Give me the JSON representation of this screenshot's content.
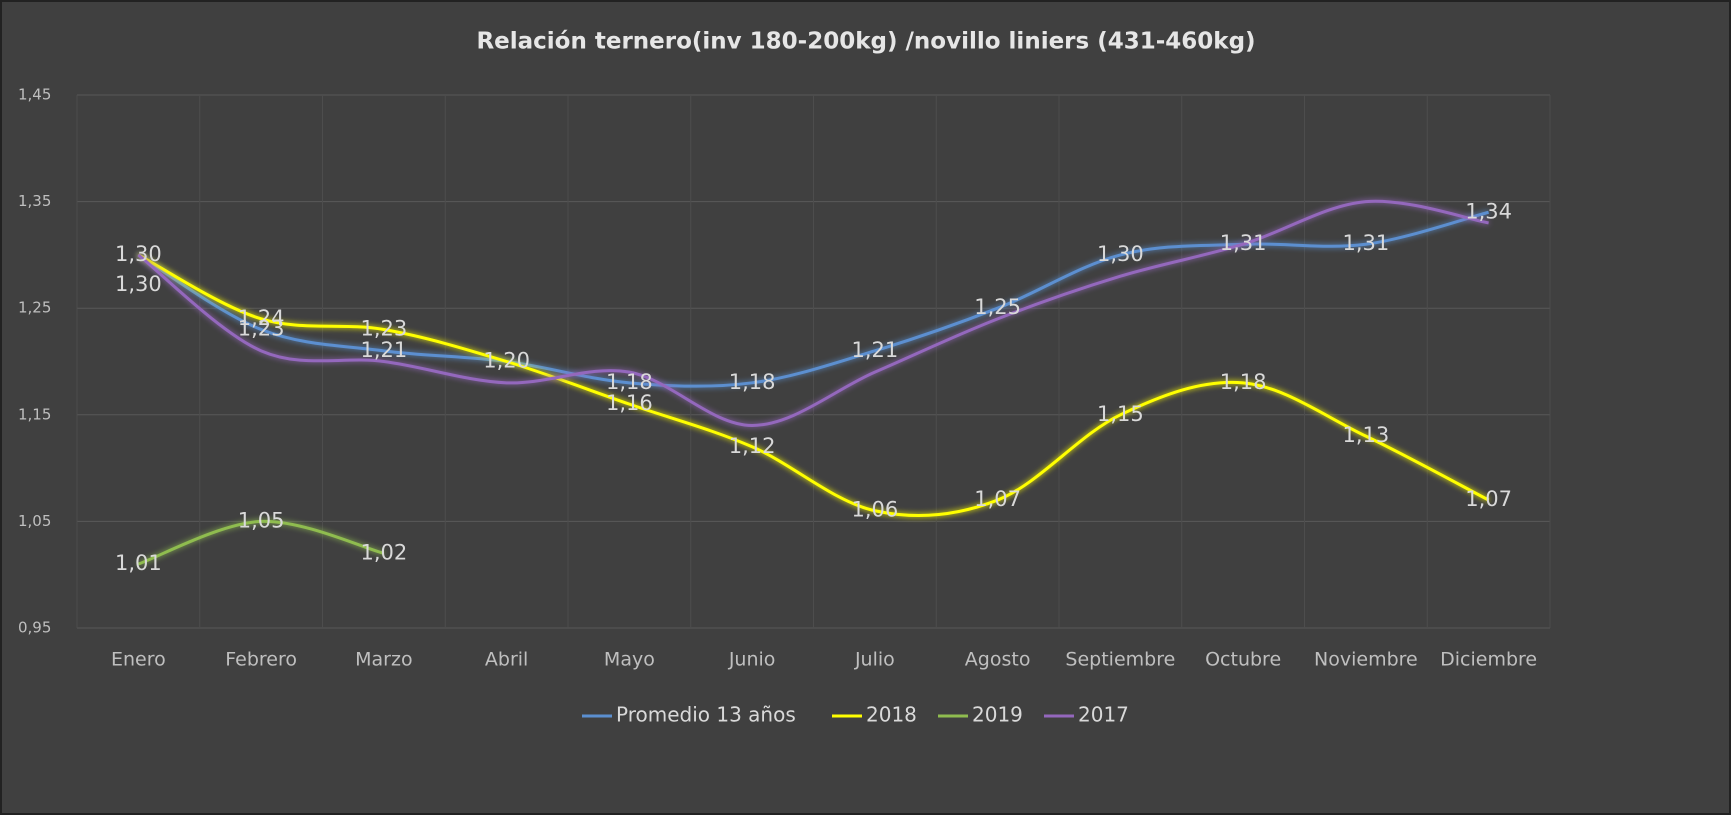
{
  "chart_data": {
    "type": "line",
    "title": "Relación ternero(inv 180-200kg) /novillo liniers (431-460kg)",
    "categories": [
      "Enero",
      "Febrero",
      "Marzo",
      "Abril",
      "Mayo",
      "Junio",
      "Julio",
      "Agosto",
      "Septiembre",
      "Octubre",
      "Noviembre",
      "Diciembre"
    ],
    "ylim": [
      0.95,
      1.45
    ],
    "yticks": [
      {
        "value": 0.95,
        "label": "0,95"
      },
      {
        "value": 1.05,
        "label": "1,05"
      },
      {
        "value": 1.15,
        "label": "1,15"
      },
      {
        "value": 1.25,
        "label": "1,25"
      },
      {
        "value": 1.35,
        "label": "1,35"
      },
      {
        "value": 1.45,
        "label": "1,45"
      }
    ],
    "grid": true,
    "smooth": true,
    "legend": "bottom",
    "series": [
      {
        "name": "Promedio 13 años",
        "color": "#5b8fd0",
        "values": [
          1.3,
          1.23,
          1.21,
          1.2,
          1.18,
          1.18,
          1.21,
          1.25,
          1.3,
          1.31,
          1.31,
          1.34
        ],
        "value_labels": [
          "1,30",
          "1,23",
          "1,21",
          "1,20",
          "1,18",
          "1,18",
          "1,21",
          "1,25",
          "1,30",
          "1,31",
          "1,31",
          "1,34"
        ]
      },
      {
        "name": "2018",
        "color": "#ffff00",
        "values": [
          1.3,
          1.24,
          1.23,
          1.2,
          1.16,
          1.12,
          1.06,
          1.07,
          1.15,
          1.18,
          1.13,
          1.07
        ],
        "value_labels": [
          "1,30",
          "1,24",
          "1,23",
          null,
          "1,16",
          "1,12",
          "1,06",
          "1,07",
          "1,15",
          "1,18",
          "1,13",
          "1,07"
        ]
      },
      {
        "name": "2019",
        "color": "#8fbc4f",
        "values": [
          1.01,
          1.05,
          1.02,
          null,
          null,
          null,
          null,
          null,
          null,
          null,
          null,
          null
        ],
        "value_labels": [
          "1,01",
          "1,05",
          "1,02",
          null,
          null,
          null,
          null,
          null,
          null,
          null,
          null,
          null
        ]
      },
      {
        "name": "2017",
        "color": "#9467bd",
        "values": [
          1.3,
          1.21,
          1.2,
          1.18,
          1.19,
          1.14,
          1.19,
          1.24,
          1.28,
          1.31,
          1.35,
          1.33
        ]
      }
    ]
  }
}
